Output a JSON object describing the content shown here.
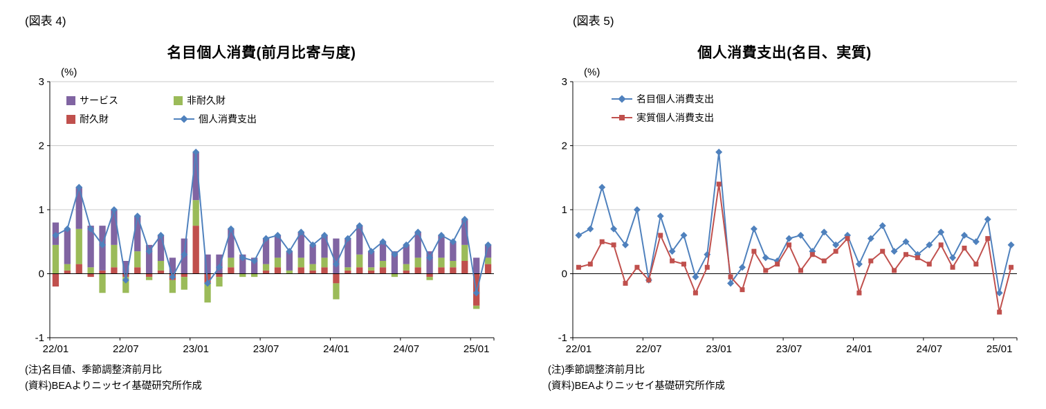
{
  "page": {
    "background": "#ffffff"
  },
  "colors": {
    "services": "#8064A2",
    "durables": "#C0504D",
    "nondurables": "#9BBB59",
    "nominal_line": "#4F81BD",
    "real_line": "#C0504D",
    "axis": "#000000",
    "grid": "#c9c9c9"
  },
  "left_panel": {
    "fig_label": "(図表 4)",
    "title": "名目個人消費(前月比寄与度)",
    "unit_label": "(%)",
    "notes": [
      "(注)名目値、季節調整済前月比",
      "(資料)BEAよりニッセイ基礎研究所作成"
    ]
  },
  "right_panel": {
    "fig_label": "(図表 5)",
    "title": "個人消費支出(名目、実質)",
    "unit_label": "(%)",
    "notes": [
      "(注)季節調整済前月比",
      "(資料)BEAよりニッセイ基礎研究所作成"
    ]
  },
  "chart_data": [
    {
      "type": "bar",
      "subtype": "stacked-bars-with-line",
      "title": "名目個人消費(前月比寄与度)",
      "unit_label": "(%)",
      "ylim": [
        -1,
        3
      ],
      "yticks": [
        3,
        2,
        1,
        0,
        -1
      ],
      "grid": true,
      "legend_position": "top-left-inside",
      "x": [
        "22/01",
        "22/02",
        "22/03",
        "22/04",
        "22/05",
        "22/06",
        "22/07",
        "22/08",
        "22/09",
        "22/10",
        "22/11",
        "22/12",
        "23/01",
        "23/02",
        "23/03",
        "23/04",
        "23/05",
        "23/06",
        "23/07",
        "23/08",
        "23/09",
        "23/10",
        "23/11",
        "23/12",
        "24/01",
        "24/02",
        "24/03",
        "24/04",
        "24/05",
        "24/06",
        "24/07",
        "24/08",
        "24/09",
        "24/10",
        "24/11",
        "24/12",
        "25/01",
        "25/02"
      ],
      "x_ticks": [
        {
          "index": 0,
          "label": "22/01"
        },
        {
          "index": 6,
          "label": "22/07"
        },
        {
          "index": 12,
          "label": "23/01"
        },
        {
          "index": 18,
          "label": "23/07"
        },
        {
          "index": 24,
          "label": "24/01"
        },
        {
          "index": 30,
          "label": "24/07"
        },
        {
          "index": 36,
          "label": "25/01"
        }
      ],
      "series": [
        {
          "name": "耐久財",
          "type": "bar",
          "color": "#C0504D",
          "values": [
            -0.2,
            0.05,
            0.15,
            -0.05,
            0.05,
            0.1,
            -0.05,
            0.1,
            -0.05,
            0.05,
            -0.1,
            -0.05,
            0.75,
            -0.15,
            -0.05,
            0.1,
            0,
            0,
            0.05,
            0.1,
            0,
            0.1,
            0.05,
            0.1,
            -0.15,
            0.05,
            0.1,
            0.05,
            0.1,
            0,
            0.05,
            0.1,
            -0.05,
            0.1,
            0.1,
            0.2,
            -0.5,
            0.15
          ]
        },
        {
          "name": "非耐久財",
          "type": "bar",
          "color": "#9BBB59",
          "values": [
            0.45,
            0.1,
            0.55,
            0.1,
            -0.3,
            0.35,
            -0.25,
            0.25,
            -0.05,
            0.15,
            -0.2,
            -0.2,
            0.4,
            -0.3,
            -0.15,
            0.15,
            -0.05,
            -0.05,
            0.1,
            0.15,
            0.05,
            0.15,
            0.1,
            0.15,
            -0.25,
            0.05,
            0.2,
            0.05,
            0.1,
            -0.05,
            0.1,
            0.15,
            -0.05,
            0.15,
            0.1,
            0.25,
            -0.05,
            0.1
          ]
        },
        {
          "name": "サービス",
          "type": "bar",
          "color": "#8064A2",
          "values": [
            0.35,
            0.55,
            0.65,
            0.65,
            0.7,
            0.55,
            0.2,
            0.55,
            0.45,
            0.4,
            0.25,
            0.55,
            0.75,
            0.3,
            0.3,
            0.45,
            0.3,
            0.25,
            0.4,
            0.35,
            0.3,
            0.4,
            0.3,
            0.35,
            0.55,
            0.45,
            0.45,
            0.25,
            0.3,
            0.35,
            0.3,
            0.4,
            0.35,
            0.35,
            0.3,
            0.4,
            0.25,
            0.2
          ]
        },
        {
          "name": "個人消費支出",
          "type": "line",
          "marker": "diamond",
          "color": "#4F81BD",
          "values": [
            0.6,
            0.7,
            1.35,
            0.7,
            0.45,
            1,
            -0.1,
            0.9,
            0.35,
            0.6,
            -0.05,
            0.3,
            1.9,
            -0.15,
            0.1,
            0.7,
            0.25,
            0.2,
            0.55,
            0.6,
            0.35,
            0.65,
            0.45,
            0.6,
            0.15,
            0.55,
            0.75,
            0.35,
            0.5,
            0.3,
            0.45,
            0.65,
            0.25,
            0.6,
            0.5,
            0.85,
            -0.3,
            0.45
          ]
        }
      ]
    },
    {
      "type": "line",
      "title": "個人消費支出(名目、実質)",
      "unit_label": "(%)",
      "ylim": [
        -1,
        3
      ],
      "yticks": [
        3,
        2,
        1,
        0,
        -1
      ],
      "grid": true,
      "legend_position": "top-center-inside",
      "x": [
        "22/01",
        "22/02",
        "22/03",
        "22/04",
        "22/05",
        "22/06",
        "22/07",
        "22/08",
        "22/09",
        "22/10",
        "22/11",
        "22/12",
        "23/01",
        "23/02",
        "23/03",
        "23/04",
        "23/05",
        "23/06",
        "23/07",
        "23/08",
        "23/09",
        "23/10",
        "23/11",
        "23/12",
        "24/01",
        "24/02",
        "24/03",
        "24/04",
        "24/05",
        "24/06",
        "24/07",
        "24/08",
        "24/09",
        "24/10",
        "24/11",
        "24/12",
        "25/01",
        "25/02"
      ],
      "x_ticks": [
        {
          "index": 0,
          "label": "22/01"
        },
        {
          "index": 6,
          "label": "22/07"
        },
        {
          "index": 12,
          "label": "23/01"
        },
        {
          "index": 18,
          "label": "23/07"
        },
        {
          "index": 24,
          "label": "24/01"
        },
        {
          "index": 30,
          "label": "24/07"
        },
        {
          "index": 36,
          "label": "25/01"
        }
      ],
      "series": [
        {
          "name": "名目個人消費支出",
          "type": "line",
          "marker": "diamond",
          "color": "#4F81BD",
          "values": [
            0.6,
            0.7,
            1.35,
            0.7,
            0.45,
            1,
            -0.1,
            0.9,
            0.35,
            0.6,
            -0.05,
            0.3,
            1.9,
            -0.15,
            0.1,
            0.7,
            0.25,
            0.2,
            0.55,
            0.6,
            0.35,
            0.65,
            0.45,
            0.6,
            0.15,
            0.55,
            0.75,
            0.35,
            0.5,
            0.3,
            0.45,
            0.65,
            0.25,
            0.6,
            0.5,
            0.85,
            -0.3,
            0.45
          ]
        },
        {
          "name": "実質個人消費支出",
          "type": "line",
          "marker": "square",
          "color": "#C0504D",
          "values": [
            0.1,
            0.15,
            0.5,
            0.45,
            -0.15,
            0.1,
            -0.1,
            0.6,
            0.2,
            0.15,
            -0.3,
            0.1,
            1.4,
            -0.05,
            -0.25,
            0.35,
            0.05,
            0.15,
            0.45,
            0.05,
            0.3,
            0.2,
            0.35,
            0.55,
            -0.3,
            0.2,
            0.35,
            0.05,
            0.3,
            0.25,
            0.15,
            0.45,
            0.1,
            0.4,
            0.15,
            0.55,
            -0.6,
            0.1
          ]
        }
      ]
    }
  ]
}
